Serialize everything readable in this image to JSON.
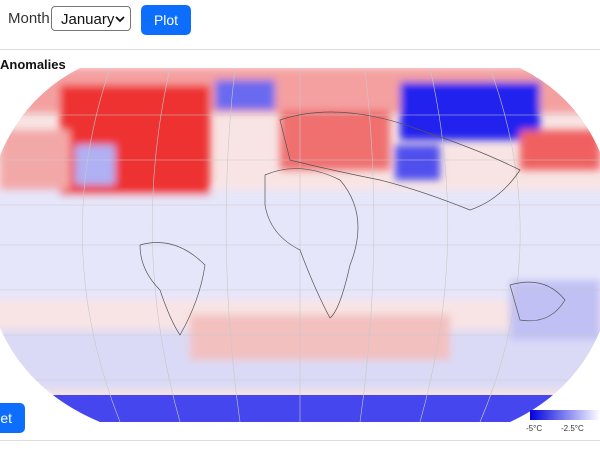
{
  "toolbar": {
    "month_label": "Month:",
    "month_select": "January",
    "plot_button": "Plot"
  },
  "map": {
    "title": "Anomalies",
    "colorbar_ticks": [
      "-5°C",
      "-2.5°C"
    ]
  },
  "reset_button": "et"
}
